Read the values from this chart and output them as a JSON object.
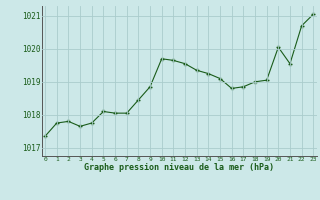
{
  "x": [
    0,
    1,
    2,
    3,
    4,
    5,
    6,
    7,
    8,
    9,
    10,
    11,
    12,
    13,
    14,
    15,
    16,
    17,
    18,
    19,
    20,
    21,
    22,
    23
  ],
  "y": [
    1017.35,
    1017.75,
    1017.8,
    1017.65,
    1017.75,
    1018.1,
    1018.05,
    1018.05,
    1018.45,
    1018.85,
    1019.7,
    1019.65,
    1019.55,
    1019.35,
    1019.25,
    1019.1,
    1018.8,
    1018.85,
    1019.0,
    1019.05,
    1020.05,
    1019.55,
    1020.7,
    1021.05
  ],
  "line_color": "#1a5c1a",
  "marker_color": "#1a5c1a",
  "bg_color": "#cce8e8",
  "grid_color": "#aacccc",
  "xlabel": "Graphe pression niveau de la mer (hPa)",
  "xlabel_color": "#1a5c1a",
  "tick_color": "#1a5c1a",
  "yticks": [
    1017,
    1018,
    1019,
    1020,
    1021
  ],
  "xticks": [
    0,
    1,
    2,
    3,
    4,
    5,
    6,
    7,
    8,
    9,
    10,
    11,
    12,
    13,
    14,
    15,
    16,
    17,
    18,
    19,
    20,
    21,
    22,
    23
  ],
  "ylim": [
    1016.75,
    1021.3
  ],
  "xlim": [
    -0.3,
    23.3
  ]
}
